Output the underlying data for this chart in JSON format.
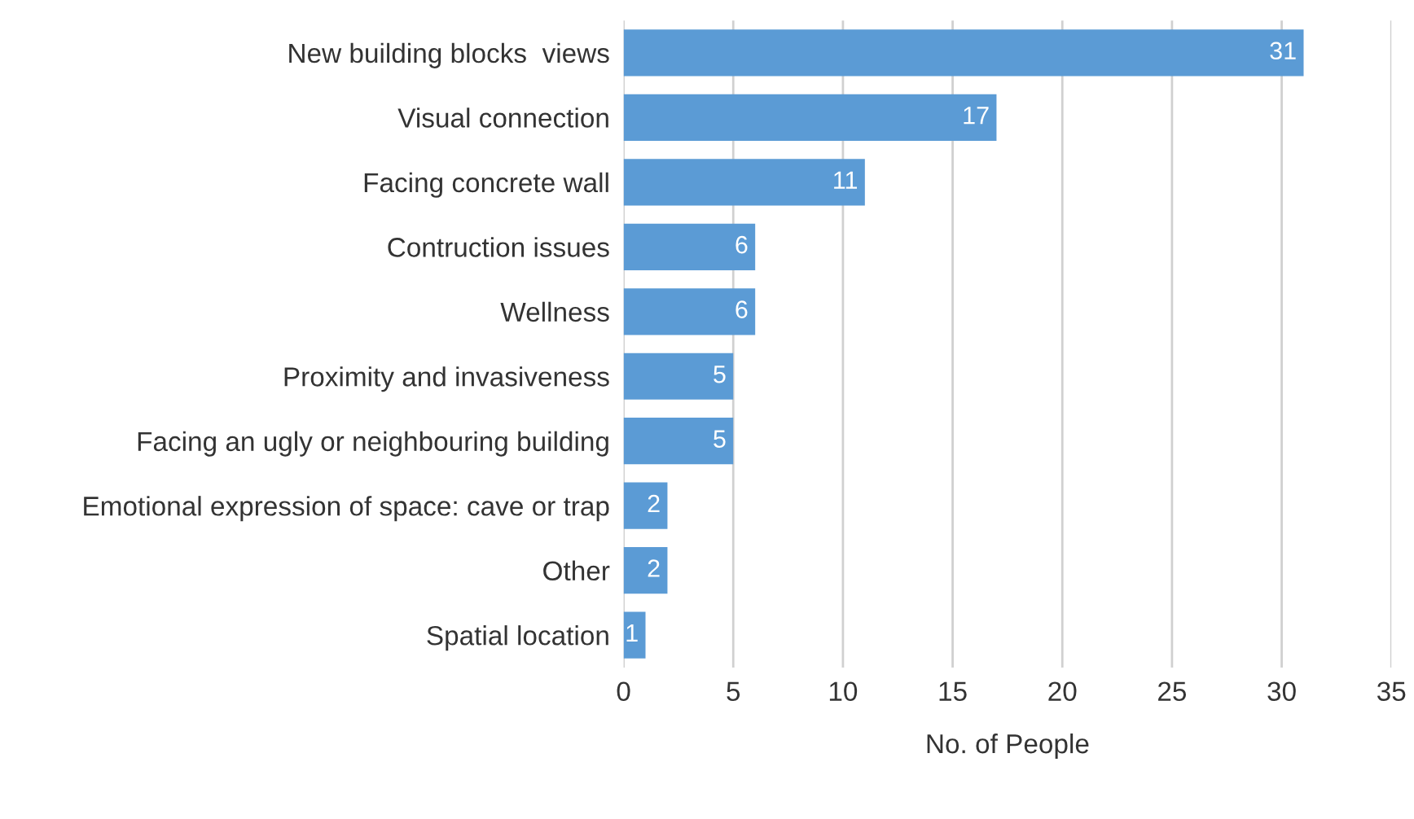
{
  "chart_data": {
    "type": "bar",
    "orientation": "horizontal",
    "xlabel": "No. of People",
    "categories": [
      "New building blocks  views",
      "Visual connection",
      "Facing concrete wall",
      "Contruction issues",
      "Wellness",
      "Proximity and invasiveness",
      "Facing an ugly or neighbouring building",
      "Emotional expression of space: cave or trap",
      "Other",
      "Spatial location"
    ],
    "values": [
      31,
      17,
      11,
      6,
      6,
      5,
      5,
      2,
      2,
      1
    ],
    "color": "#5b9bd5",
    "xlim": [
      0,
      35
    ],
    "xticks": [
      0,
      5,
      10,
      15,
      20,
      25,
      30,
      35
    ],
    "grid": "x",
    "data_labels": true
  }
}
